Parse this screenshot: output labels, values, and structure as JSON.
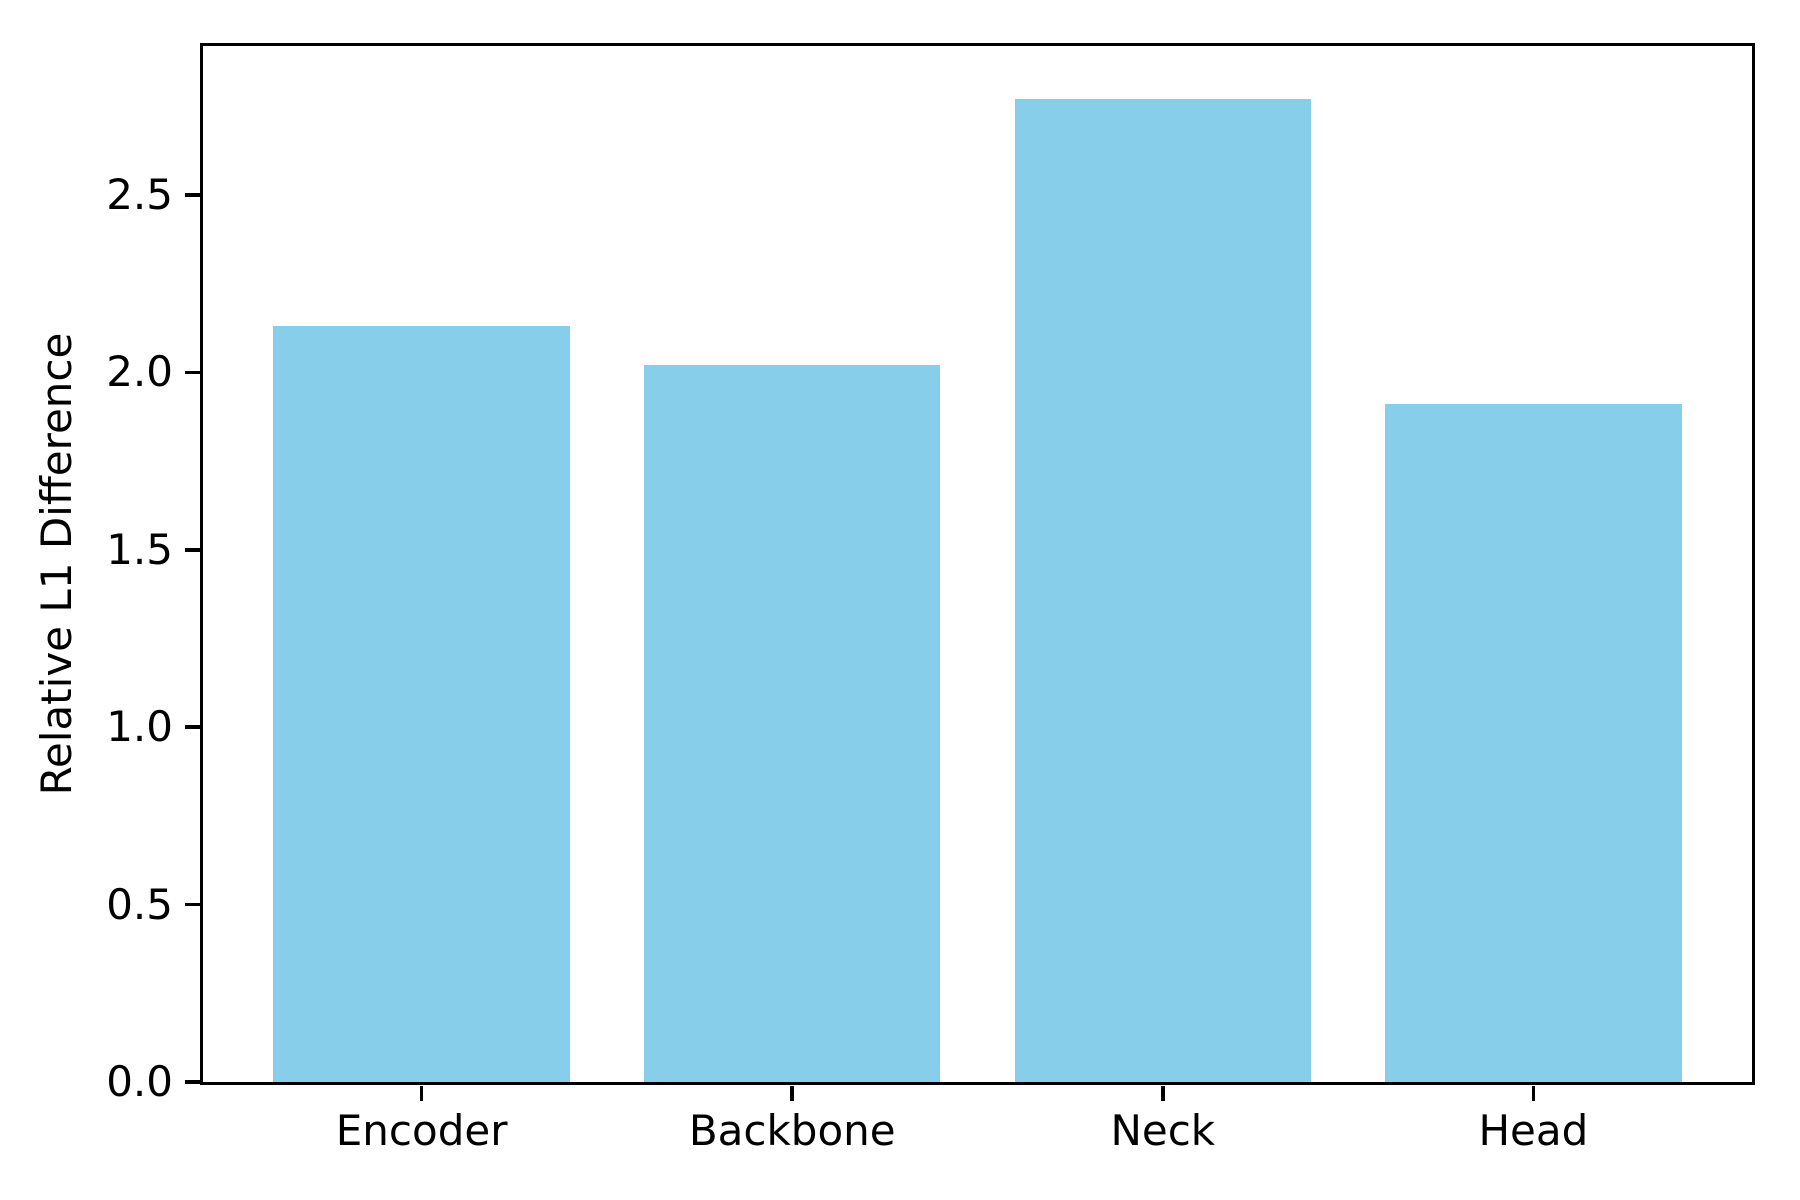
{
  "chart_data": {
    "type": "bar",
    "title": "",
    "xlabel": "",
    "ylabel": "Relative L1 Difference",
    "categories": [
      "Encoder",
      "Backbone",
      "Neck",
      "Head"
    ],
    "values": [
      2.13,
      2.02,
      2.77,
      1.91
    ],
    "bar_color": "#87CEEB",
    "bar_width": 0.8,
    "xlim": [
      -0.59,
      3.59
    ],
    "ylim": [
      0,
      2.92
    ],
    "yticks": [
      0.0,
      0.5,
      1.0,
      1.5,
      2.0,
      2.5
    ],
    "ytick_labels": [
      "0.0",
      "0.5",
      "1.0",
      "1.5",
      "2.0",
      "2.5"
    ],
    "axis_color": "#000000",
    "background_color": "#ffffff",
    "grid": false,
    "legend": false
  }
}
